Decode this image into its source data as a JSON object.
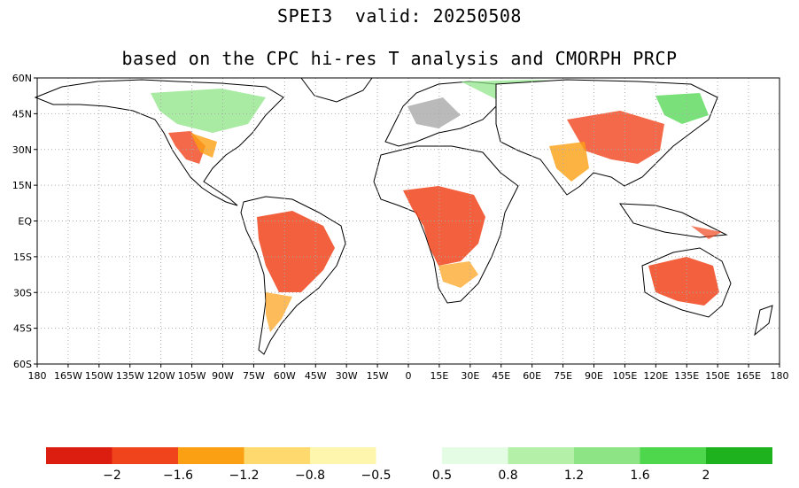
{
  "title": "SPEI3  valid: 20250508",
  "subtitle": "based on the CPC hi-res T analysis and CMORPH PRCP",
  "map": {
    "lat_labels": [
      "60N",
      "45N",
      "30N",
      "15N",
      "EQ",
      "15S",
      "30S",
      "45S",
      "60S"
    ],
    "lon_labels": [
      "180",
      "165W",
      "150W",
      "135W",
      "120W",
      "105W",
      "90W",
      "75W",
      "60W",
      "45W",
      "30W",
      "15W",
      "0",
      "15E",
      "30E",
      "45E",
      "60E",
      "75E",
      "90E",
      "105E",
      "120E",
      "135E",
      "150E",
      "165E",
      "180"
    ],
    "lon_range": [
      -180,
      180
    ],
    "lat_range": [
      -60,
      60
    ],
    "grid": true
  },
  "colorbar": {
    "colors": [
      "#dc1e10",
      "#f0441c",
      "#fca013",
      "#fdd96e",
      "#fef6ad",
      "#ffffff",
      "#e4fbe4",
      "#b4f0a8",
      "#8ce484",
      "#4ed64c",
      "#1eb21e"
    ],
    "labels": [
      "−2",
      "−1.6",
      "−1.2",
      "−0.8",
      "−0.5",
      "0.5",
      "0.8",
      "1.2",
      "1.6",
      "2"
    ]
  }
}
